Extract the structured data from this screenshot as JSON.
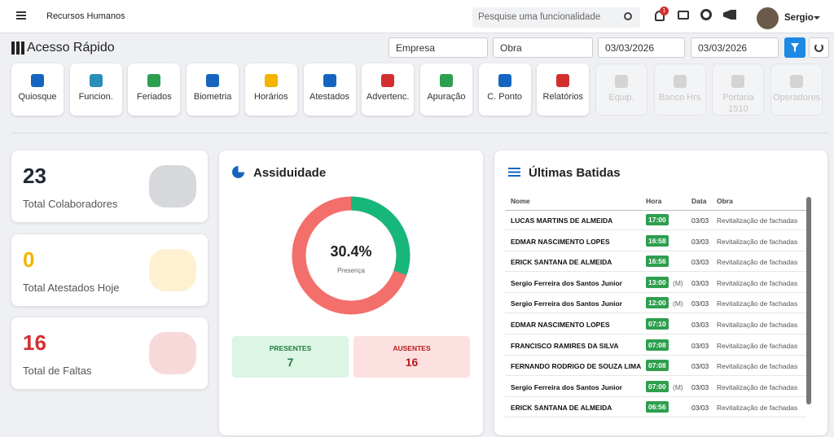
{
  "header": {
    "app_title": "Recursos Humanos",
    "search_placeholder": "Pesquise uma funcionalidade",
    "notification_count": "1",
    "user": "Sergio"
  },
  "toolbar": {
    "title": "Acesso Rápido",
    "company_filter": "Empresa",
    "site_filter": "Obra",
    "date_from": "03/03/2026",
    "date_to": "03/03/2026"
  },
  "quick_access": [
    {
      "label": "Quiosque",
      "color": "#1565c0"
    },
    {
      "label": "Funcion.",
      "color": "#2a8fb8"
    },
    {
      "label": "Feriados",
      "color": "#2e9e4f"
    },
    {
      "label": "Biometria",
      "color": "#1565c0"
    },
    {
      "label": "Horários",
      "color": "#f4b400"
    },
    {
      "label": "Atestados",
      "color": "#1565c0"
    },
    {
      "label": "Advertenc.",
      "color": "#d32f2f"
    },
    {
      "label": "Apuração",
      "color": "#2e9e4f"
    },
    {
      "label": "C. Ponto",
      "color": "#1565c0"
    },
    {
      "label": "Relatórios",
      "color": "#d32f2f"
    },
    {
      "label": "Equip.",
      "disabled": true
    },
    {
      "label": "Banco Hrs",
      "disabled": true
    },
    {
      "label": "Portaria 1510",
      "disabled": true
    },
    {
      "label": "Operadores",
      "disabled": true
    }
  ],
  "stats": [
    {
      "value": 23,
      "label": "Total Colaboradores",
      "color": "#1f2937"
    },
    {
      "value": 0,
      "label": "Total Atestados Hoje",
      "color": "#f4b400"
    },
    {
      "value": 16,
      "label": "Total de Faltas",
      "color": "#d32f2f"
    }
  ],
  "assiduidade": {
    "title": "Assiduidade",
    "presence": {
      "value": 30.4,
      "label": "30.4%"
    },
    "caption": "Presença",
    "present": {
      "label": "PRESENTES",
      "value": 7
    },
    "absent": {
      "label": "AUSENTES",
      "value": 16
    }
  },
  "batidas": {
    "title": "Últimas Batidas",
    "columns": [
      "Nome",
      "Hora",
      "Data",
      "Obra"
    ],
    "rows": [
      {
        "name": "LUCAS MARTINS DE ALMEIDA",
        "time": "17:00",
        "date": "03/03",
        "site": "Revitalização de fachadas"
      },
      {
        "name": "EDMAR NASCIMENTO LOPES",
        "time": "16:58",
        "date": "03/03",
        "site": "Revitalização de fachadas"
      },
      {
        "name": "ERICK SANTANA DE ALMEIDA",
        "time": "16:56",
        "date": "03/03",
        "site": "Revitalização de fachadas"
      },
      {
        "name": "Sergio Ferreira dos Santos Junior",
        "time": "13:00",
        "marker": "(M)",
        "date": "03/03",
        "site": "Revitalização de fachadas"
      },
      {
        "name": "Sergio Ferreira dos Santos Junior",
        "time": "12:00",
        "marker": "(M)",
        "date": "03/03",
        "site": "Revitalização de fachadas"
      },
      {
        "name": "EDMAR NASCIMENTO LOPES",
        "time": "07:10",
        "date": "03/03",
        "site": "Revitalização de fachadas"
      },
      {
        "name": "FRANCISCO RAMIRES DA SILVA",
        "time": "07:08",
        "date": "03/03",
        "site": "Revitalização de fachadas"
      },
      {
        "name": "FERNANDO RODRIGO DE SOUZA LIMA",
        "time": "07:08",
        "date": "03/03",
        "site": "Revitalização de fachadas"
      },
      {
        "name": "Sergio Ferreira dos Santos Junior",
        "time": "07:00",
        "marker": "(M)",
        "date": "03/03",
        "site": "Revitalização de fachadas"
      },
      {
        "name": "ERICK SANTANA DE ALMEIDA",
        "time": "06:56",
        "date": "03/03",
        "site": "Revitalização de fachadas"
      }
    ]
  }
}
